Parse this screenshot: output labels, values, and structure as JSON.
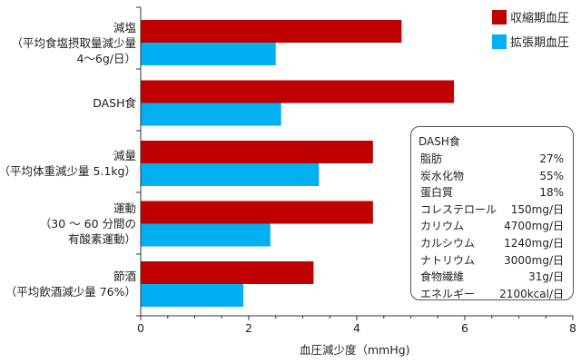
{
  "chart_data": {
    "type": "bar",
    "orientation": "horizontal",
    "categories": [
      [
        "減塩",
        "（平均食塩摂取量減少量",
        "4〜6g/日）"
      ],
      [
        "DASH食"
      ],
      [
        "減量",
        "（平均体重減少量 5.1kg）"
      ],
      [
        "運動",
        "（30 〜 60 分間の",
        "有酸素運動）"
      ],
      [
        "節酒",
        "（平均飲酒減少量 76%）"
      ]
    ],
    "series": [
      {
        "name": "収縮期血圧",
        "color": "#c00000",
        "values": [
          4.83,
          5.8,
          4.3,
          4.3,
          3.2
        ]
      },
      {
        "name": "拡張期血圧",
        "color": "#00b0f0",
        "values": [
          2.5,
          2.6,
          3.3,
          2.4,
          1.9
        ]
      }
    ],
    "xlabel": "血圧減少度（mmHg)",
    "xlim": [
      0,
      8
    ],
    "xticks": [
      0,
      2,
      4,
      6,
      8
    ],
    "grid": false,
    "legend_position": "top-right"
  },
  "info_box": {
    "title": "DASH食",
    "rows": [
      {
        "name": "脂肪",
        "value": "27%"
      },
      {
        "name": "炭水化物",
        "value": "55%"
      },
      {
        "name": "蛋白質",
        "value": "18%"
      },
      {
        "name": "コレステロール",
        "value": "150mg/日"
      },
      {
        "name": "カリウム",
        "value": "4700mg/日"
      },
      {
        "name": "カルシウム",
        "value": "1240mg/日"
      },
      {
        "name": "ナトリウム",
        "value": "3000mg/日"
      },
      {
        "name": "食物繊維",
        "value": "31g/日"
      },
      {
        "name": "エネルギー",
        "value": "2100kcal/日"
      }
    ]
  }
}
